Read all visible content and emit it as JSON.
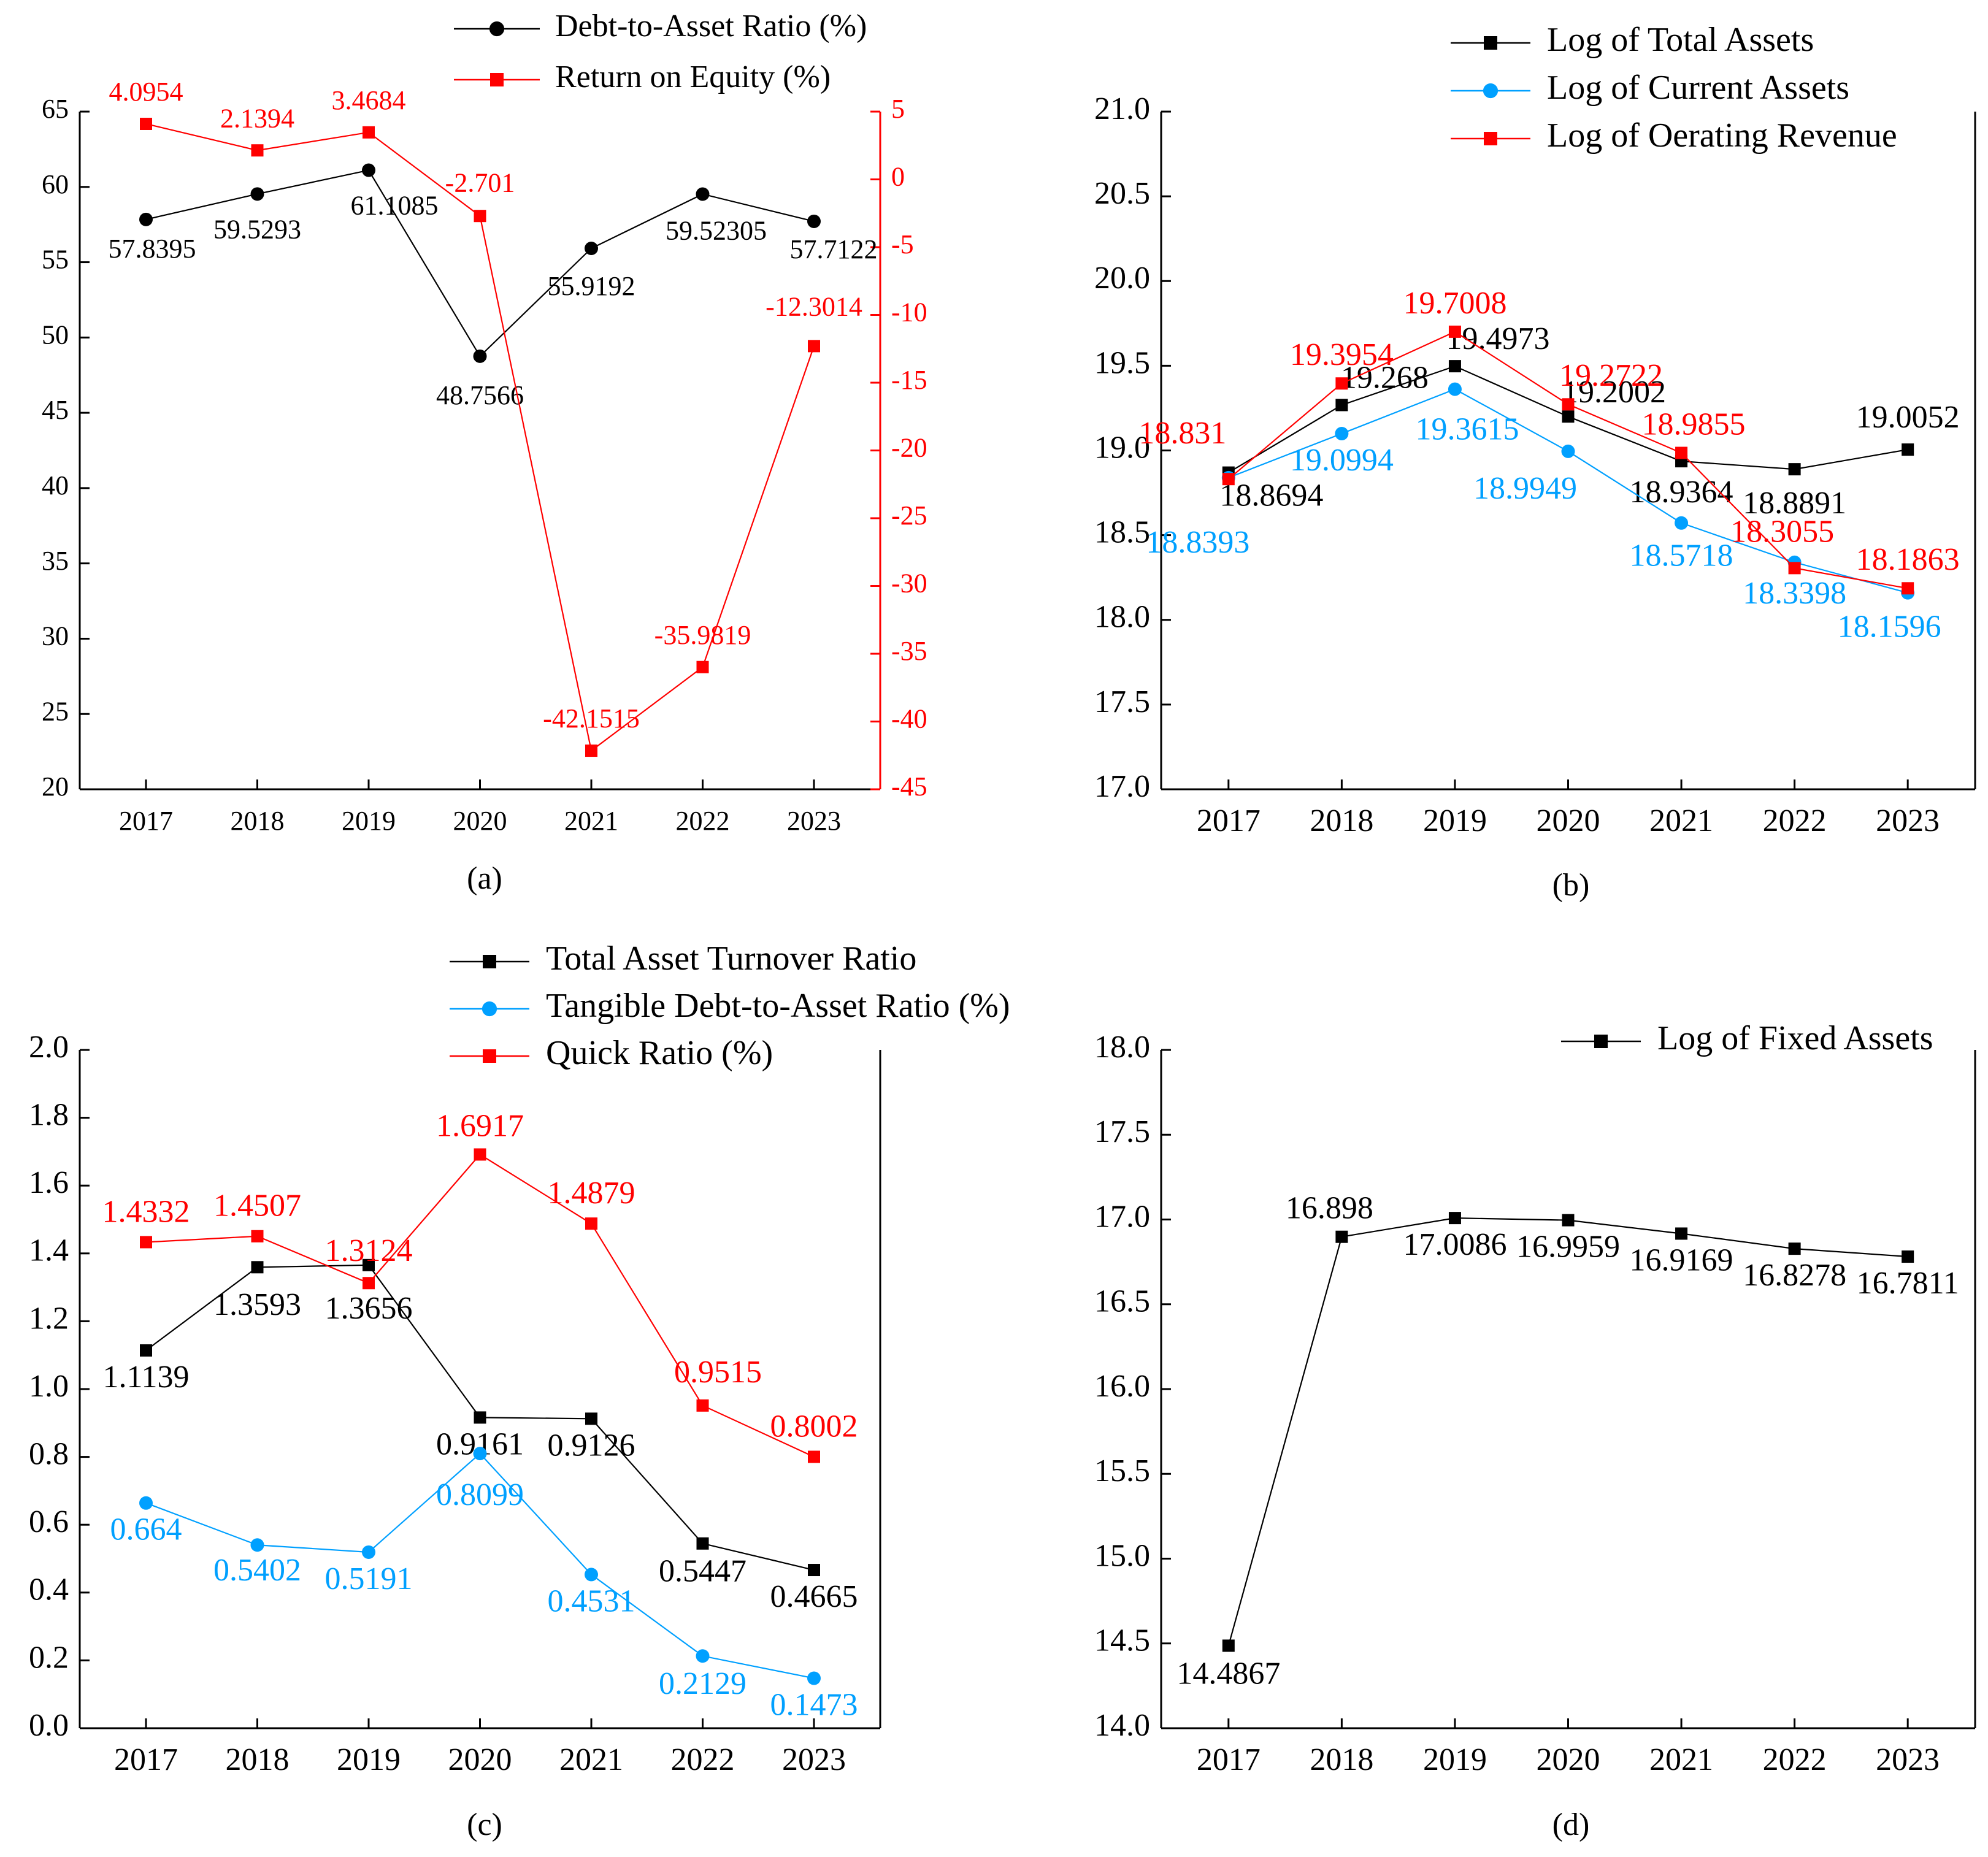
{
  "charts": {
    "a": {
      "caption": "(a)",
      "colors": {
        "primary": "#000000",
        "secondary": "#ff0000"
      },
      "legend": [
        "Debt-to-Asset Ratio (%)",
        "Return on Equity (%)"
      ],
      "y_ticks": [
        "65",
        "60",
        "55",
        "50",
        "45",
        "40",
        "35",
        "30",
        "25",
        "20"
      ],
      "y2_ticks": [
        "5",
        "0",
        "-5",
        "-10",
        "-15",
        "-20",
        "-25",
        "-30",
        "-35",
        "-40",
        "-45"
      ],
      "x_ticks": [
        "2017",
        "2018",
        "2019",
        "2020",
        "2021",
        "2022",
        "2023"
      ]
    },
    "b": {
      "caption": "(b)",
      "colors": {
        "black": "#000000",
        "blue": "#00a0ff",
        "red": "#ff0000"
      },
      "legend": [
        "Log of Total Assets",
        "Log of Current Assets",
        "Log of Oerating Revenue"
      ],
      "y_ticks": [
        "21.0",
        "20.5",
        "20.0",
        "19.5",
        "19.0",
        "18.5",
        "18.0",
        "17.5",
        "17.0"
      ],
      "x_ticks": [
        "2017",
        "2018",
        "2019",
        "2020",
        "2021",
        "2022",
        "2023"
      ]
    },
    "c": {
      "caption": "(c)",
      "colors": {
        "black": "#000000",
        "blue": "#00a0ff",
        "red": "#ff0000"
      },
      "legend": [
        "Total Asset Turnover Ratio",
        "Tangible Debt-to-Asset Ratio (%)",
        "Quick Ratio (%)"
      ],
      "y_ticks": [
        "2.0",
        "1.8",
        "1.6",
        "1.4",
        "1.2",
        "1.0",
        "0.8",
        "0.6",
        "0.4",
        "0.2",
        "0.0"
      ],
      "x_ticks": [
        "2017",
        "2018",
        "2019",
        "2020",
        "2021",
        "2022",
        "2023"
      ]
    },
    "d": {
      "caption": "(d)",
      "colors": {
        "black": "#000000"
      },
      "legend": [
        "Log of Fixed Assets"
      ],
      "y_ticks": [
        "18.0",
        "17.5",
        "17.0",
        "16.5",
        "16.0",
        "15.5",
        "15.0",
        "14.5",
        "14.0"
      ],
      "x_ticks": [
        "2017",
        "2018",
        "2019",
        "2020",
        "2021",
        "2022",
        "2023"
      ]
    }
  },
  "chart_data": [
    {
      "type": "line",
      "x": [
        "2017",
        "2018",
        "2019",
        "2020",
        "2021",
        "2022",
        "2023"
      ],
      "ylim": [
        20,
        65
      ],
      "y2lim": [
        -45,
        5
      ],
      "series": [
        {
          "name": "Debt-to-Asset Ratio (%)",
          "axis": "left",
          "color": "#000000",
          "marker": "circle",
          "values": [
            57.8395,
            59.5293,
            61.1085,
            48.7566,
            55.9192,
            59.52305,
            57.7122
          ],
          "labels": [
            "57.8395",
            "59.5293",
            "61.1085",
            "48.7566",
            "55.9192",
            "59.52305",
            "57.7122"
          ]
        },
        {
          "name": "Return on Equity (%)",
          "axis": "right",
          "color": "#ff0000",
          "marker": "square",
          "values": [
            4.0954,
            2.1394,
            3.4684,
            -2.701,
            -42.1515,
            -35.9819,
            -12.3014
          ],
          "labels": [
            "4.0954",
            "2.1394",
            "3.4684",
            "-2.701",
            "-42.1515",
            "-35.9819",
            "-12.3014"
          ]
        }
      ]
    },
    {
      "type": "line",
      "x": [
        "2017",
        "2018",
        "2019",
        "2020",
        "2021",
        "2022",
        "2023"
      ],
      "ylim": [
        17.0,
        21.0
      ],
      "series": [
        {
          "name": "Log of Total Assets",
          "color": "#000000",
          "marker": "square",
          "values": [
            18.8694,
            19.268,
            19.4973,
            19.2002,
            18.9364,
            18.8891,
            19.0052
          ],
          "labels": [
            "18.8694",
            "19.268",
            "19.4973",
            "19.2002",
            "18.9364",
            "18.8891",
            "19.0052"
          ]
        },
        {
          "name": "Log of Current Assets",
          "color": "#00a0ff",
          "marker": "circle",
          "values": [
            18.8393,
            19.0994,
            19.3615,
            18.9949,
            18.5718,
            18.3398,
            18.1596
          ],
          "labels": [
            "18.8393",
            "19.0994",
            "19.3615",
            "18.9949",
            "18.5718",
            "18.3398",
            "18.1596"
          ]
        },
        {
          "name": "Log of Oerating Revenue",
          "color": "#ff0000",
          "marker": "square",
          "values": [
            18.831,
            19.3954,
            19.7008,
            19.2722,
            18.9855,
            18.3055,
            18.1863
          ],
          "labels": [
            "18.831",
            "19.3954",
            "19.7008",
            "19.2722",
            "18.9855",
            "18.3055",
            "18.1863"
          ]
        }
      ]
    },
    {
      "type": "line",
      "x": [
        "2017",
        "2018",
        "2019",
        "2020",
        "2021",
        "2022",
        "2023"
      ],
      "ylim": [
        0.0,
        2.0
      ],
      "series": [
        {
          "name": "Total Asset Turnover Ratio",
          "color": "#000000",
          "marker": "square",
          "values": [
            1.1139,
            1.3593,
            1.3656,
            0.9161,
            0.9126,
            0.5447,
            0.4665
          ],
          "labels": [
            "1.1139",
            "1.3593",
            "1.3656",
            "0.9161",
            "0.9126",
            "0.5447",
            "0.4665"
          ]
        },
        {
          "name": "Tangible Debt-to-Asset Ratio (%)",
          "color": "#00a0ff",
          "marker": "circle",
          "values": [
            0.664,
            0.5402,
            0.5191,
            0.8099,
            0.4531,
            0.2129,
            0.1473
          ],
          "labels": [
            "0.664",
            "0.5402",
            "0.5191",
            "0.8099",
            "0.4531",
            "0.2129",
            "0.1473"
          ]
        },
        {
          "name": "Quick Ratio (%)",
          "color": "#ff0000",
          "marker": "square",
          "values": [
            1.4332,
            1.4507,
            1.3124,
            1.6917,
            1.4879,
            0.9515,
            0.8002
          ],
          "labels": [
            "1.4332",
            "1.4507",
            "1.3124",
            "1.6917",
            "1.4879",
            "0.9515",
            "0.8002"
          ]
        }
      ]
    },
    {
      "type": "line",
      "x": [
        "2017",
        "2018",
        "2019",
        "2020",
        "2021",
        "2022",
        "2023"
      ],
      "ylim": [
        14.0,
        18.0
      ],
      "series": [
        {
          "name": "Log of Fixed Assets",
          "color": "#000000",
          "marker": "square",
          "values": [
            14.4867,
            16.898,
            17.0086,
            16.9959,
            16.9169,
            16.8278,
            16.7811
          ],
          "labels": [
            "14.4867",
            "16.898",
            "17.0086",
            "16.9959",
            "16.9169",
            "16.8278",
            "16.7811"
          ]
        }
      ]
    }
  ]
}
